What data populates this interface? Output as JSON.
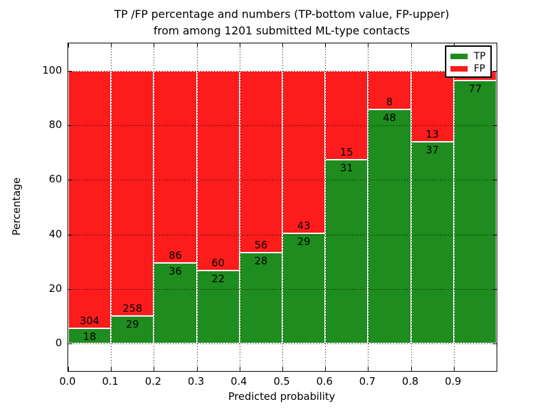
{
  "chart_data": {
    "type": "bar",
    "stacked": true,
    "title_line1": "TP /FP percentage and numbers (TP-bottom value, FP-upper)",
    "title_line2": "from among 1201 submitted ML-type contacts",
    "xlabel": "Predicted probability",
    "ylabel": "Percentage",
    "x_tick_labels": [
      "0.0",
      "0.1",
      "0.2",
      "0.3",
      "0.4",
      "0.5",
      "0.6",
      "0.7",
      "0.8",
      "0.9"
    ],
    "y_tick_labels": [
      "0",
      "20",
      "40",
      "60",
      "80",
      "100"
    ],
    "y_tick_values": [
      0,
      20,
      40,
      60,
      80,
      100
    ],
    "xlim": [
      0.0,
      1.0
    ],
    "ylim": [
      -10,
      110
    ],
    "grid": true,
    "colors": {
      "tp": "#1e8c1e",
      "fp": "#fc1c1c"
    },
    "legend": {
      "position": "upper right",
      "entries": [
        {
          "label": "TP",
          "color": "#1e8c1e"
        },
        {
          "label": "FP",
          "color": "#fc1c1c"
        }
      ]
    },
    "bars": [
      {
        "range": "0.0-0.1",
        "tp": 18,
        "fp": 304,
        "tp_pct": 5.6
      },
      {
        "range": "0.1-0.2",
        "tp": 29,
        "fp": 258,
        "tp_pct": 10.1
      },
      {
        "range": "0.2-0.3",
        "tp": 36,
        "fp": 86,
        "tp_pct": 29.5
      },
      {
        "range": "0.3-0.4",
        "tp": 22,
        "fp": 60,
        "tp_pct": 26.8
      },
      {
        "range": "0.4-0.5",
        "tp": 28,
        "fp": 56,
        "tp_pct": 33.3
      },
      {
        "range": "0.5-0.6",
        "tp": 29,
        "fp": 43,
        "tp_pct": 40.3
      },
      {
        "range": "0.6-0.7",
        "tp": 31,
        "fp": 15,
        "tp_pct": 67.4
      },
      {
        "range": "0.7-0.8",
        "tp": 48,
        "fp": 8,
        "tp_pct": 85.7
      },
      {
        "range": "0.8-0.9",
        "tp": 37,
        "fp": 13,
        "tp_pct": 74.0
      },
      {
        "range": "0.9-1.0",
        "tp": 77,
        "fp": null,
        "tp_pct": 96.3
      }
    ]
  }
}
